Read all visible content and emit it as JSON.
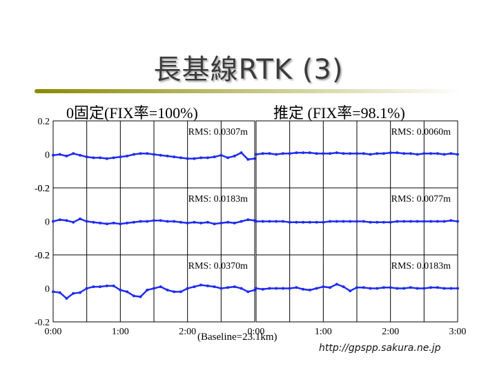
{
  "slide": {
    "title": "長基線RTK (3)",
    "left_column_title": "0固定(FIX率=100%)",
    "right_column_title": "推定 (FIX率=98.1%)",
    "baseline_label": "(Baseline=23.1km)",
    "url": "http://gpspp.sakura.ne.jp"
  },
  "colors": {
    "series": "#1f2cf0",
    "rule_start": "#8a8a00",
    "rule_end": "#ffffff",
    "title_text": "#3b3b3b"
  },
  "chart_data": {
    "type": "scatter",
    "grid": true,
    "xlim": [
      0,
      3
    ],
    "ylim": [
      -0.2,
      0.2
    ],
    "x_tick_labels_left": [
      "0:00",
      "1:00",
      "2:00"
    ],
    "x_tick_labels_right": [
      "0:00",
      "1:00",
      "2:00",
      "3:00"
    ],
    "y_tick_labels": [
      "0.2",
      "0",
      "-0.2"
    ],
    "panels": [
      {
        "row": 0,
        "col": 0,
        "rms": "RMS: 0.0307m",
        "x": [
          0,
          0.1,
          0.2,
          0.3,
          0.4,
          0.5,
          0.6,
          0.7,
          0.8,
          0.9,
          1.0,
          1.1,
          1.2,
          1.3,
          1.4,
          1.5,
          1.6,
          1.7,
          1.8,
          1.9,
          2.0,
          2.1,
          2.2,
          2.3,
          2.4,
          2.5,
          2.6,
          2.7,
          2.8,
          2.9,
          3.0
        ],
        "y": [
          -0.005,
          0.0,
          -0.01,
          0.005,
          -0.005,
          -0.015,
          -0.02,
          -0.02,
          -0.025,
          -0.02,
          -0.015,
          -0.01,
          0.0,
          0.005,
          0.005,
          0.0,
          -0.005,
          -0.01,
          -0.015,
          -0.02,
          -0.025,
          -0.025,
          -0.02,
          -0.02,
          -0.015,
          -0.005,
          -0.02,
          -0.01,
          0.01,
          -0.03,
          -0.025
        ]
      },
      {
        "row": 0,
        "col": 1,
        "rms": "RMS: 0.0060m",
        "x": [
          0,
          0.1,
          0.2,
          0.3,
          0.4,
          0.5,
          0.6,
          0.7,
          0.8,
          0.9,
          1.0,
          1.1,
          1.2,
          1.3,
          1.4,
          1.5,
          1.6,
          1.7,
          1.8,
          1.9,
          2.0,
          2.1,
          2.2,
          2.3,
          2.4,
          2.5,
          2.6,
          2.7,
          2.8,
          2.9,
          3.0
        ],
        "y": [
          0.0,
          0.005,
          0.005,
          0.0,
          0.005,
          0.005,
          0.01,
          0.01,
          0.01,
          0.005,
          0.005,
          0.005,
          0.01,
          0.005,
          0.005,
          0.005,
          0.005,
          0.0,
          0.005,
          0.005,
          0.01,
          0.01,
          0.005,
          0.005,
          0.0,
          0.005,
          0.005,
          0.005,
          0.0,
          0.005,
          0.0
        ]
      },
      {
        "row": 1,
        "col": 0,
        "rms": "RMS: 0.0183m",
        "x": [
          0,
          0.1,
          0.2,
          0.3,
          0.4,
          0.5,
          0.6,
          0.7,
          0.8,
          0.9,
          1.0,
          1.1,
          1.2,
          1.3,
          1.4,
          1.5,
          1.6,
          1.7,
          1.8,
          1.9,
          2.0,
          2.1,
          2.2,
          2.3,
          2.4,
          2.5,
          2.6,
          2.7,
          2.8,
          2.9,
          3.0
        ],
        "y": [
          0.0,
          0.01,
          0.005,
          -0.005,
          0.015,
          0.0,
          -0.005,
          -0.01,
          -0.015,
          -0.01,
          -0.015,
          -0.01,
          -0.005,
          0.0,
          0.0,
          0.005,
          0.005,
          0.0,
          0.0,
          -0.005,
          -0.01,
          -0.005,
          -0.01,
          -0.005,
          -0.015,
          -0.01,
          -0.005,
          -0.01,
          0.0,
          0.01,
          0.005
        ]
      },
      {
        "row": 1,
        "col": 1,
        "rms": "RMS: 0.0077m",
        "x": [
          0,
          0.1,
          0.2,
          0.3,
          0.4,
          0.5,
          0.6,
          0.7,
          0.8,
          0.9,
          1.0,
          1.1,
          1.2,
          1.3,
          1.4,
          1.5,
          1.6,
          1.7,
          1.8,
          1.9,
          2.0,
          2.1,
          2.2,
          2.3,
          2.4,
          2.5,
          2.6,
          2.7,
          2.8,
          2.9,
          3.0
        ],
        "y": [
          0.0,
          0.0,
          0.0,
          0.0,
          0.0,
          -0.005,
          -0.005,
          -0.005,
          -0.005,
          -0.005,
          -0.005,
          0.0,
          0.0,
          0.0,
          0.0,
          0.0,
          0.0,
          -0.005,
          -0.005,
          -0.005,
          -0.005,
          0.0,
          0.0,
          0.0,
          0.0,
          0.0,
          0.0,
          0.0,
          0.0,
          0.005,
          0.0
        ]
      },
      {
        "row": 2,
        "col": 0,
        "rms": "RMS: 0.0370m",
        "x": [
          0,
          0.1,
          0.2,
          0.3,
          0.4,
          0.5,
          0.6,
          0.7,
          0.8,
          0.9,
          1.0,
          1.1,
          1.2,
          1.3,
          1.4,
          1.5,
          1.6,
          1.7,
          1.8,
          1.9,
          2.0,
          2.1,
          2.2,
          2.3,
          2.4,
          2.5,
          2.6,
          2.7,
          2.8,
          2.9,
          3.0
        ],
        "y": [
          -0.02,
          -0.025,
          -0.06,
          -0.03,
          -0.025,
          0.0,
          0.01,
          0.01,
          0.015,
          0.015,
          -0.01,
          -0.02,
          -0.045,
          -0.05,
          -0.01,
          0.0,
          0.01,
          -0.01,
          -0.02,
          -0.02,
          0.0,
          0.01,
          0.02,
          0.015,
          0.01,
          0.0,
          0.005,
          0.01,
          0.0,
          -0.02,
          -0.01
        ]
      },
      {
        "row": 2,
        "col": 1,
        "rms": "RMS: 0.0183m",
        "x": [
          0,
          0.1,
          0.2,
          0.3,
          0.4,
          0.5,
          0.6,
          0.7,
          0.8,
          0.9,
          1.0,
          1.1,
          1.2,
          1.3,
          1.4,
          1.5,
          1.6,
          1.7,
          1.8,
          1.9,
          2.0,
          2.1,
          2.2,
          2.3,
          2.4,
          2.5,
          2.6,
          2.7,
          2.8,
          2.9,
          3.0
        ],
        "y": [
          0.0,
          -0.005,
          0.0,
          0.0,
          0.0,
          0.0,
          0.005,
          -0.005,
          -0.01,
          0.0,
          0.01,
          0.005,
          0.025,
          0.01,
          -0.015,
          0.005,
          0.005,
          0.0,
          0.0,
          0.005,
          0.005,
          0.0,
          0.0,
          0.005,
          0.0,
          0.0,
          0.005,
          0.005,
          0.0,
          0.0,
          0.0
        ]
      }
    ]
  }
}
